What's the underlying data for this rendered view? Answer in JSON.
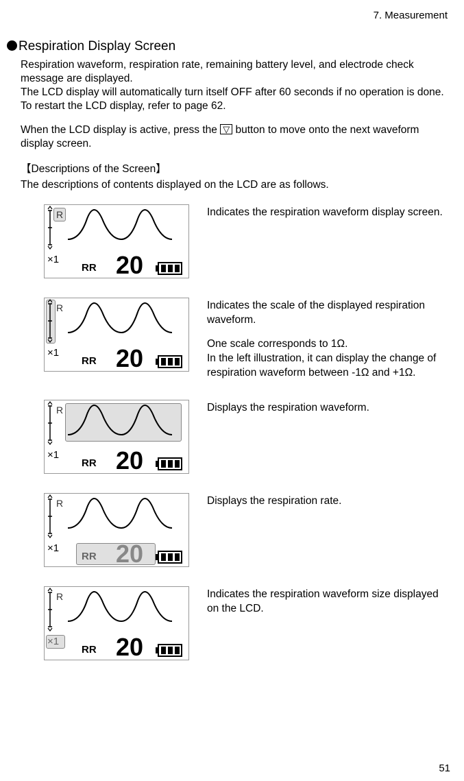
{
  "header": {
    "chapter": "7. Measurement"
  },
  "title": "Respiration Display Screen",
  "intro_p1": "Respiration waveform, respiration rate, remaining battery level, and electrode check message are displayed.",
  "intro_p2": "The LCD display will automatically turn itself OFF after 60 seconds if no operation is done. To restart the LCD display, refer to page 62.",
  "intro_p3a": "When the LCD display is active, press the ",
  "intro_p3b": " button to move onto the next waveform display screen.",
  "button_glyph": "▽",
  "desc_title": "【Descriptions of the Screen】",
  "desc_intro": "The descriptions of contents displayed on the LCD are as follows.",
  "lcd_labels": {
    "r": "R",
    "x1": "×1",
    "rr": "RR",
    "value": "20"
  },
  "rows": [
    {
      "highlight": "r",
      "desc": "Indicates the respiration waveform display screen."
    },
    {
      "highlight": "scale",
      "desc": "Indicates the scale of the displayed respiration waveform.",
      "extra": "One scale corresponds to 1Ω.\nIn the left illustration, it can display the change of respiration waveform between -1Ω and +1Ω."
    },
    {
      "highlight": "wave",
      "desc": "Displays the respiration waveform."
    },
    {
      "highlight": "rate",
      "desc": "Displays the respiration rate."
    },
    {
      "highlight": "x1",
      "desc": "Indicates the respiration waveform size displayed on the LCD."
    }
  ],
  "page_number": "51",
  "colors": {
    "text": "#000000",
    "bg": "#ffffff",
    "lcd_border": "#999999",
    "highlight_fill": "#e0e0e0",
    "highlight_border": "#888888"
  }
}
